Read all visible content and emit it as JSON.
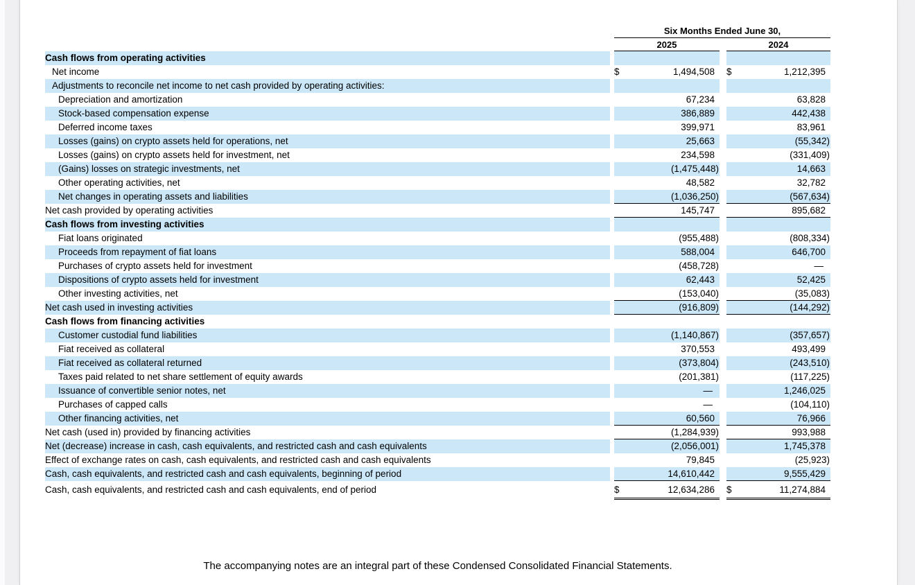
{
  "colors": {
    "row_highlight": "#cce8f8",
    "page_background": "#ffffff",
    "canvas_background": "#f0f0f2",
    "text": "#000000"
  },
  "table": {
    "period_header": "Six Months Ended June 30,",
    "col_2025": "2025",
    "col_2024": "2024",
    "currency_symbol": "$",
    "rows": [
      {
        "label": "Cash flows from operating activities",
        "v2025": "",
        "v2024": "",
        "indent": 0,
        "bold": true,
        "shaded": true
      },
      {
        "label": "Net income",
        "v2025": "1,494,508",
        "v2024": "1,212,395",
        "indent": 1,
        "dollar": true
      },
      {
        "label": "Adjustments to reconcile net income to net cash provided by operating activities:",
        "v2025": "",
        "v2024": "",
        "indent": 1,
        "shaded": true
      },
      {
        "label": "Depreciation and amortization",
        "v2025": "67,234",
        "v2024": "63,828",
        "indent": 2
      },
      {
        "label": "Stock-based compensation expense",
        "v2025": "386,889",
        "v2024": "442,438",
        "indent": 2,
        "shaded": true
      },
      {
        "label": "Deferred income taxes",
        "v2025": "399,971",
        "v2024": "83,961",
        "indent": 2
      },
      {
        "label": "Losses (gains) on crypto assets held for operations, net",
        "v2025": "25,663",
        "v2024": "(55,342)",
        "indent": 2,
        "shaded": true
      },
      {
        "label": "Losses (gains) on crypto assets held for investment, net",
        "v2025": "234,598",
        "v2024": "(331,409)",
        "indent": 2
      },
      {
        "label": "(Gains) losses on strategic investments, net",
        "v2025": "(1,475,448)",
        "v2024": "14,663",
        "indent": 2,
        "shaded": true
      },
      {
        "label": "Other operating activities, net",
        "v2025": "48,582",
        "v2024": "32,782",
        "indent": 2
      },
      {
        "label": "Net changes in operating assets and liabilities",
        "v2025": "(1,036,250)",
        "v2024": "(567,634)",
        "indent": 2,
        "shaded": true,
        "rule": "single"
      },
      {
        "label": "Net cash provided by operating activities",
        "v2025": "145,747",
        "v2024": "895,682",
        "indent": 0,
        "rule": "single"
      },
      {
        "label": "Cash flows from investing activities",
        "v2025": "",
        "v2024": "",
        "indent": 0,
        "bold": true,
        "shaded": true
      },
      {
        "label": "Fiat loans originated",
        "v2025": "(955,488)",
        "v2024": "(808,334)",
        "indent": 2
      },
      {
        "label": "Proceeds from repayment of fiat loans",
        "v2025": "588,004",
        "v2024": "646,700",
        "indent": 2,
        "shaded": true
      },
      {
        "label": "Purchases of crypto assets held for investment",
        "v2025": "(458,728)",
        "v2024": "—",
        "indent": 2
      },
      {
        "label": "Dispositions of crypto assets held for investment",
        "v2025": "62,443",
        "v2024": "52,425",
        "indent": 2,
        "shaded": true
      },
      {
        "label": "Other investing activities, net",
        "v2025": "(153,040)",
        "v2024": "(35,083)",
        "indent": 2,
        "rule": "single"
      },
      {
        "label": "Net cash used in investing activities",
        "v2025": "(916,809)",
        "v2024": "(144,292)",
        "indent": 0,
        "shaded": true,
        "rule": "single"
      },
      {
        "label": "Cash flows from financing activities",
        "v2025": "",
        "v2024": "",
        "indent": 0,
        "bold": true
      },
      {
        "label": "Customer custodial fund liabilities",
        "v2025": "(1,140,867)",
        "v2024": "(357,657)",
        "indent": 2,
        "shaded": true
      },
      {
        "label": "Fiat received as collateral",
        "v2025": "370,553",
        "v2024": "493,499",
        "indent": 2
      },
      {
        "label": "Fiat received as collateral returned",
        "v2025": "(373,804)",
        "v2024": "(243,510)",
        "indent": 2,
        "shaded": true
      },
      {
        "label": "Taxes paid related to net share settlement of equity awards",
        "v2025": "(201,381)",
        "v2024": "(117,225)",
        "indent": 2
      },
      {
        "label": "Issuance of convertible senior notes, net",
        "v2025": "—",
        "v2024": "1,246,025",
        "indent": 2,
        "shaded": true
      },
      {
        "label": "Purchases of capped calls",
        "v2025": "—",
        "v2024": "(104,110)",
        "indent": 2
      },
      {
        "label": "Other financing activities, net",
        "v2025": "60,560",
        "v2024": "76,966",
        "indent": 2,
        "shaded": true,
        "rule": "single"
      },
      {
        "label": "Net cash (used in) provided by financing activities",
        "v2025": "(1,284,939)",
        "v2024": "993,988",
        "indent": 0,
        "rule": "single"
      },
      {
        "label": "Net (decrease) increase in cash, cash equivalents, and restricted cash and cash equivalents",
        "v2025": "(2,056,001)",
        "v2024": "1,745,378",
        "indent": 0,
        "shaded": true
      },
      {
        "label": "Effect of exchange rates on cash, cash equivalents, and restricted cash and cash equivalents",
        "v2025": "79,845",
        "v2024": "(25,923)",
        "indent": 0
      },
      {
        "label": "Cash, cash equivalents, and restricted cash and cash equivalents, beginning of period",
        "v2025": "14,610,442",
        "v2024": "9,555,429",
        "indent": 0,
        "shaded": true,
        "rule": "single"
      },
      {
        "label": "Cash, cash equivalents, and restricted cash and cash equivalents, end of period",
        "v2025": "12,634,286",
        "v2024": "11,274,884",
        "indent": 0,
        "dollar": true,
        "rule": "double",
        "tall": true
      }
    ]
  },
  "page": {
    "footer": "The accompanying notes are an integral part of these Condensed Consolidated Financial Statements."
  }
}
